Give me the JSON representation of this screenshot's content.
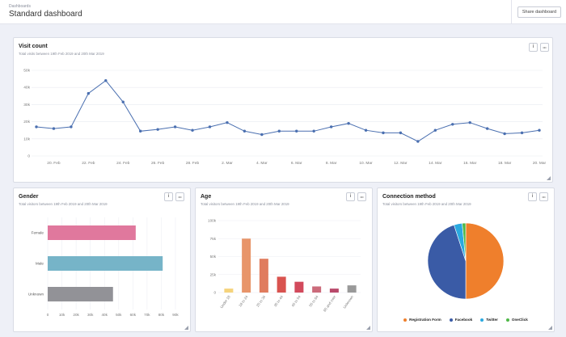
{
  "header": {
    "breadcrumb": "Dashboards",
    "title": "Standard dashboard",
    "share_label": "Share dashboard"
  },
  "icons": {
    "info": "i",
    "more": "•••"
  },
  "colors": {
    "line": "#4a6fb0",
    "gender": [
      "#e0789d",
      "#76b4c8",
      "#929297"
    ],
    "age": [
      "#f5d37c",
      "#e8956a",
      "#e07c5e",
      "#d9534f",
      "#d24a5c",
      "#cc6b7b",
      "#b94a6b",
      "#999999"
    ],
    "pie": [
      "#ef7f2c",
      "#3a5ba6",
      "#2aa9e0",
      "#4fb848"
    ]
  },
  "panels": {
    "visits": {
      "title": "Visit count",
      "subtitle": "Total visits between 19th Feb 2019 and 20th Mar 2019"
    },
    "gender": {
      "title": "Gender",
      "subtitle": "Total visitors between 19th Feb 2019 and 20th Mar 2019"
    },
    "age": {
      "title": "Age",
      "subtitle": "Total visitors between 19th Feb 2019 and 20th Mar 2019"
    },
    "connection": {
      "title": "Connection method",
      "subtitle": "Total visitors between 19th Feb 2019 and 20th Mar 2019"
    }
  },
  "chart_data": [
    {
      "type": "line",
      "x": [
        "19. Feb",
        "20. Feb",
        "21. Feb",
        "22. Feb",
        "23. Feb",
        "24. Feb",
        "25. Feb",
        "26. Feb",
        "27. Feb",
        "28. Feb",
        "1. Mar",
        "2. Mar",
        "3. Mar",
        "4. Mar",
        "5. Mar",
        "6. Mar",
        "7. Mar",
        "8. Mar",
        "9. Mar",
        "10. Mar",
        "11. Mar",
        "12. Mar",
        "13. Mar",
        "14. Mar",
        "15. Mar",
        "16. Mar",
        "17. Mar",
        "18. Mar",
        "19. Mar",
        "20. Mar"
      ],
      "xticks": [
        "20. Feb",
        "22. Feb",
        "24. Feb",
        "26. Feb",
        "28. Feb",
        "2. Mar",
        "4. Mar",
        "6. Mar",
        "8. Mar",
        "10. Mar",
        "12. Mar",
        "14. Mar",
        "16. Mar",
        "18. Mar",
        "20. Mar"
      ],
      "values": [
        17000,
        16000,
        17000,
        36500,
        44000,
        31500,
        14500,
        15500,
        17000,
        15000,
        17000,
        19500,
        14500,
        12500,
        14500,
        14500,
        14500,
        17000,
        19000,
        15000,
        13500,
        13500,
        8500,
        15000,
        18500,
        19500,
        16000,
        13000,
        13500,
        15000
      ],
      "ylim": [
        0,
        50000
      ],
      "yticks": [
        "0",
        "10k",
        "20k",
        "30k",
        "40k",
        "50k"
      ],
      "grid": true
    },
    {
      "type": "bar",
      "orientation": "horizontal",
      "categories": [
        "Female",
        "Male",
        "Unknown"
      ],
      "values": [
        62000,
        81000,
        46000
      ],
      "xlim": [
        0,
        90000
      ],
      "xticks": [
        "0",
        "10k",
        "20k",
        "30k",
        "40k",
        "50k",
        "60k",
        "70k",
        "80k",
        "90k"
      ]
    },
    {
      "type": "bar",
      "categories": [
        "Under 18",
        "18 to 24",
        "25 to 34",
        "35 to 44",
        "45 to 54",
        "55 to 64",
        "65 and over",
        "Unknown"
      ],
      "values": [
        5500,
        75000,
        47000,
        22000,
        15000,
        8500,
        5500,
        10000
      ],
      "ylim": [
        0,
        100000
      ],
      "yticks": [
        "0",
        "25k",
        "50k",
        "75k",
        "100k"
      ]
    },
    {
      "type": "pie",
      "labels": [
        "Registration Form",
        "Facebook",
        "Twitter",
        "OneClick"
      ],
      "values": [
        50,
        45,
        3.5,
        1.5
      ]
    }
  ]
}
